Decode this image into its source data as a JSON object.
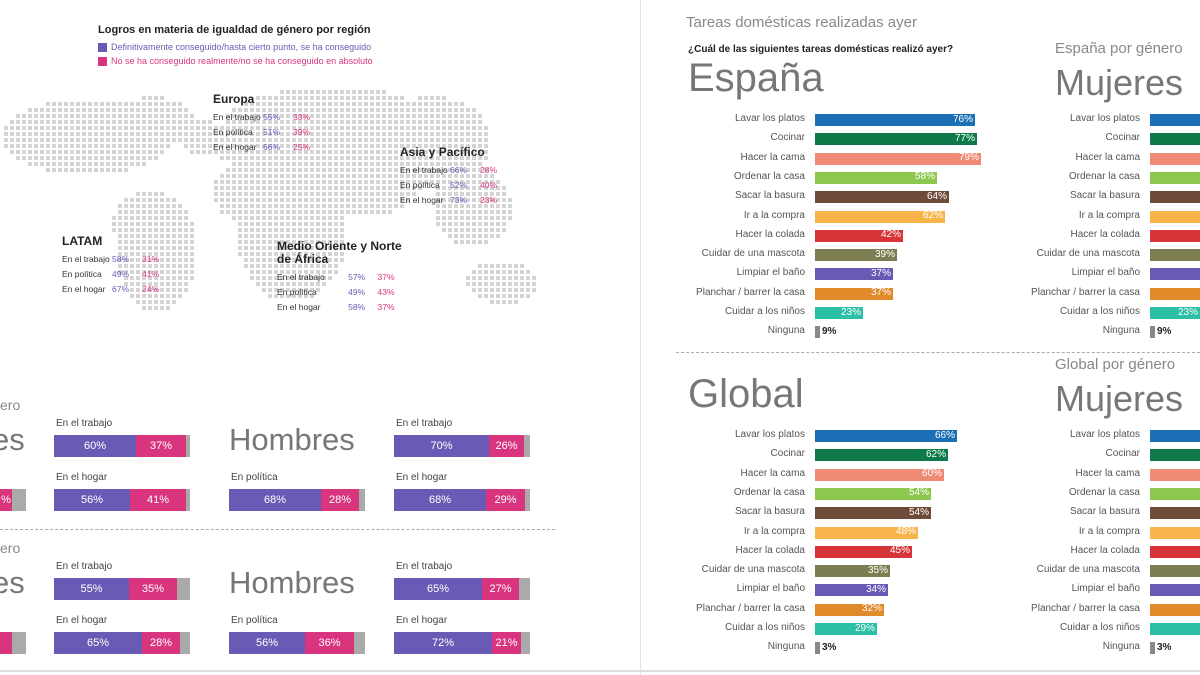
{
  "map": {
    "title": "Logros en materia de igualdad de género por región",
    "legend": [
      {
        "text": "Definitivamente conseguido/hasta cierto punto, se ha conseguido",
        "color": "#6b5ab5"
      },
      {
        "text": "No se ha conseguido realmente/no se ha conseguido en absoluto",
        "color": "#d8357e"
      }
    ],
    "regions": [
      {
        "name": "Europa",
        "rows": [
          {
            "label": "En el trabajo",
            "v1": "55%",
            "v2": "33%"
          },
          {
            "label": "En política",
            "v1": "51%",
            "v2": "39%"
          },
          {
            "label": "En el hogar",
            "v1": "66%",
            "v2": "25%"
          }
        ]
      },
      {
        "name": "Asia y Pacífico",
        "rows": [
          {
            "label": "En el trabajo",
            "v1": "66%",
            "v2": "28%"
          },
          {
            "label": "En política",
            "v1": "52%",
            "v2": "40%"
          },
          {
            "label": "En el hogar",
            "v1": "73%",
            "v2": "23%"
          }
        ]
      },
      {
        "name": "LATAM",
        "rows": [
          {
            "label": "En el trabajo",
            "v1": "58%",
            "v2": "31%"
          },
          {
            "label": "En política",
            "v1": "49%",
            "v2": "41%"
          },
          {
            "label": "En el hogar",
            "v1": "67%",
            "v2": "24%"
          }
        ]
      },
      {
        "name": "Medio Oriente y Norte de África",
        "rows": [
          {
            "label": "En el trabajo",
            "v1": "57%",
            "v2": "37%"
          },
          {
            "label": "En política",
            "v1": "49%",
            "v2": "43%"
          },
          {
            "label": "En el hogar",
            "v1": "58%",
            "v2": "37%"
          }
        ]
      }
    ]
  },
  "gender_achievements": {
    "top": {
      "heading": "ero",
      "left_big": "es",
      "left_bar": {
        "v1": "",
        "v2": "%"
      },
      "block1": [
        {
          "label": "En el trabajo",
          "v1": "60%",
          "v2": "37%",
          "p1": 60,
          "p2": 37
        },
        {
          "label": "En el hogar",
          "v1": "56%",
          "v2": "41%",
          "p1": 56,
          "p2": 41
        }
      ],
      "men_word": "Hombres",
      "men_politics": {
        "label": "En política",
        "v1": "68%",
        "v2": "28%",
        "p1": 68,
        "p2": 28
      },
      "block2": [
        {
          "label": "En el trabajo",
          "v1": "70%",
          "v2": "26%",
          "p1": 70,
          "p2": 26
        },
        {
          "label": "En el hogar",
          "v1": "68%",
          "v2": "29%",
          "p1": 68,
          "p2": 29
        }
      ]
    },
    "bottom": {
      "heading": "ero",
      "left_big": "es",
      "block1": [
        {
          "label": "En el trabajo",
          "v1": "55%",
          "v2": "35%",
          "p1": 55,
          "p2": 35
        },
        {
          "label": "En el hogar",
          "v1": "65%",
          "v2": "28%",
          "p1": 65,
          "p2": 28
        }
      ],
      "men_word": "Hombres",
      "men_politics": {
        "label": "En política",
        "v1": "56%",
        "v2": "36%",
        "p1": 56,
        "p2": 36
      },
      "block2": [
        {
          "label": "En el trabajo",
          "v1": "65%",
          "v2": "27%",
          "p1": 65,
          "p2": 27
        },
        {
          "label": "En el hogar",
          "v1": "72%",
          "v2": "21%",
          "p1": 72,
          "p2": 21
        }
      ]
    }
  },
  "chart_data": [
    {
      "type": "bar",
      "title": "Tareas domésticas realizadas ayer",
      "subtitle": "¿Cuál de las siguientes tareas domésticas realizó ayer?",
      "panel": "España",
      "categories": [
        "Lavar los platos",
        "Cocinar",
        "Hacer la cama",
        "Ordenar la casa",
        "Sacar la basura",
        "Ir a la compra",
        "Hacer la colada",
        "Cuidar de una mascota",
        "Limpiar el baño",
        "Planchar / barrer la casa",
        "Cuidar a los niños",
        "Ninguna"
      ],
      "values": [
        76,
        77,
        79,
        58,
        64,
        62,
        42,
        39,
        37,
        37,
        23,
        9
      ],
      "labels": [
        "76%",
        "77%",
        "79%",
        "58%",
        "64%",
        "62%",
        "42%",
        "39%",
        "37%",
        "37%",
        "23%",
        "9%"
      ]
    },
    {
      "type": "bar",
      "panel": "Global",
      "categories": [
        "Lavar los platos",
        "Cocinar",
        "Hacer la cama",
        "Ordenar la casa",
        "Sacar la basura",
        "Ir a la compra",
        "Hacer la colada",
        "Cuidar de una mascota",
        "Limpiar el baño",
        "Planchar / barrer la casa",
        "Cuidar a los niños",
        "Ninguna"
      ],
      "values": [
        66,
        62,
        60,
        54,
        54,
        48,
        45,
        35,
        34,
        32,
        29,
        3
      ],
      "labels": [
        "66%",
        "62%",
        "60%",
        "54%",
        "54%",
        "48%",
        "45%",
        "35%",
        "34%",
        "32%",
        "29%",
        "3%"
      ]
    },
    {
      "type": "bar",
      "title": "España por género",
      "panel": "Mujeres",
      "categories": [
        "Lavar los platos",
        "Cocinar",
        "Hacer la cama",
        "Ordenar la casa",
        "Sacar la basura",
        "Ir a la compra",
        "Hacer la colada",
        "Cuidar de una mascota",
        "Limpiar el baño",
        "Planchar / barrer la casa",
        "Cuidar a los niños",
        "Ninguna"
      ],
      "visible_labels": [
        "23%",
        "9%"
      ]
    },
    {
      "type": "bar",
      "title": "Global por género",
      "panel": "Mujeres",
      "categories": [
        "Lavar los platos",
        "Cocinar",
        "Hacer la cama",
        "Ordenar la casa",
        "Sacar la basura",
        "Ir a la compra",
        "Hacer la colada",
        "Cuidar de una mascota",
        "Limpiar el baño",
        "Planchar / barrer la casa",
        "Cuidar a los niños",
        "Ninguna"
      ],
      "visible_labels": [
        "3%"
      ]
    }
  ],
  "colors": [
    "#1b6fb5",
    "#0e7a4a",
    "#ef8a74",
    "#8cc84f",
    "#6f4b3a",
    "#f6b44a",
    "#d8353a",
    "#7d7d52",
    "#6b5ab5",
    "#e08a2a",
    "#2bbfa5",
    "#888888"
  ]
}
